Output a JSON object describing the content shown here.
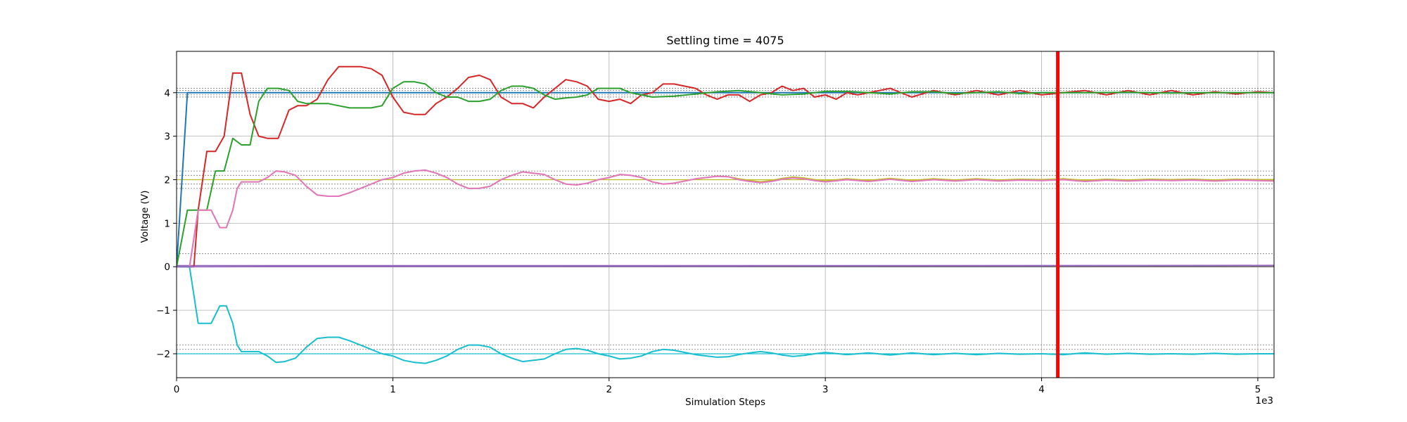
{
  "chart_data": {
    "type": "line",
    "title": "Settling time = 4075",
    "xlabel": "Simulation Steps",
    "ylabel": "Voltage (V)",
    "x_offset_label": "1e3",
    "xlim": [
      0,
      5075
    ],
    "ylim": [
      -2.55,
      4.95
    ],
    "xticks": [
      0,
      1000,
      2000,
      3000,
      4000,
      5000
    ],
    "xtick_labels": [
      "0",
      "1",
      "2",
      "3",
      "4",
      "5"
    ],
    "yticks": [
      -2,
      -1,
      0,
      1,
      2,
      3,
      4
    ],
    "ytick_labels": [
      "−2",
      "−1",
      "0",
      "1",
      "2",
      "3",
      "4"
    ],
    "grid": true,
    "settling_time": 4075,
    "settling_line_color": "#ff0000",
    "reference_lines": [
      {
        "y": 4.0,
        "color": "#1f77b4",
        "style": "solid"
      },
      {
        "y": 2.0,
        "color": "#bcbd22",
        "style": "solid"
      },
      {
        "y": 0.0,
        "color": "#555555",
        "style": "solid"
      },
      {
        "y": 0.03,
        "color": "#9467bd",
        "style": "solid"
      },
      {
        "y": -2.0,
        "color": "#17becf",
        "style": "solid"
      }
    ],
    "tolerance_bands": [
      3.9,
      3.95,
      4.05,
      4.1,
      1.8,
      1.9,
      2.1,
      2.2,
      0.3,
      -1.8,
      -1.9
    ],
    "series": [
      {
        "color": "#1f77b4",
        "x": [
          0,
          50,
          100,
          5075
        ],
        "y": [
          0,
          4,
          4,
          4
        ]
      },
      {
        "color": "#d62728",
        "x": [
          0,
          80,
          100,
          140,
          180,
          220,
          260,
          300,
          340,
          380,
          420,
          470,
          520,
          560,
          600,
          650,
          700,
          750,
          800,
          850,
          900,
          950,
          1000,
          1050,
          1100,
          1150,
          1200,
          1250,
          1300,
          1350,
          1400,
          1450,
          1500,
          1550,
          1600,
          1650,
          1700,
          1750,
          1800,
          1850,
          1900,
          1950,
          2000,
          2050,
          2100,
          2150,
          2200,
          2250,
          2300,
          2350,
          2400,
          2450,
          2500,
          2550,
          2600,
          2650,
          2700,
          2750,
          2800,
          2850,
          2900,
          2950,
          3000,
          3050,
          3100,
          3150,
          3200,
          3300,
          3400,
          3500,
          3600,
          3700,
          3800,
          3900,
          4000,
          4100,
          4200,
          4300,
          4400,
          4500,
          4600,
          4700,
          4800,
          4900,
          5000,
          5075
        ],
        "y": [
          0,
          0,
          1.3,
          2.65,
          2.65,
          3.0,
          4.45,
          4.45,
          3.5,
          3.0,
          2.95,
          2.95,
          3.6,
          3.7,
          3.7,
          3.85,
          4.3,
          4.6,
          4.6,
          4.6,
          4.55,
          4.4,
          3.9,
          3.55,
          3.5,
          3.5,
          3.75,
          3.9,
          4.1,
          4.35,
          4.4,
          4.3,
          3.9,
          3.75,
          3.75,
          3.65,
          3.9,
          4.1,
          4.3,
          4.25,
          4.15,
          3.85,
          3.8,
          3.85,
          3.75,
          3.95,
          4.0,
          4.2,
          4.2,
          4.15,
          4.1,
          3.95,
          3.85,
          3.95,
          3.95,
          3.8,
          3.95,
          4.0,
          4.15,
          4.05,
          4.1,
          3.9,
          3.95,
          3.85,
          4.0,
          3.95,
          4.0,
          4.1,
          3.9,
          4.05,
          3.95,
          4.05,
          3.95,
          4.05,
          3.95,
          4.0,
          4.05,
          3.95,
          4.05,
          3.95,
          4.05,
          3.95,
          4.02,
          3.97,
          4.02,
          4.0
        ]
      },
      {
        "color": "#2ca02c",
        "x": [
          0,
          50,
          100,
          140,
          180,
          220,
          260,
          300,
          340,
          380,
          420,
          470,
          520,
          560,
          600,
          650,
          700,
          750,
          800,
          850,
          900,
          950,
          1000,
          1050,
          1100,
          1150,
          1200,
          1250,
          1300,
          1350,
          1400,
          1450,
          1500,
          1550,
          1600,
          1650,
          1700,
          1750,
          1800,
          1850,
          1900,
          1950,
          2000,
          2050,
          2100,
          2150,
          2200,
          2300,
          2400,
          2500,
          2600,
          2700,
          2800,
          2900,
          3000,
          3100,
          3200,
          3300,
          3400,
          3500,
          3600,
          3700,
          3800,
          3900,
          4000,
          4200,
          4400,
          4600,
          4800,
          5000,
          5075
        ],
        "y": [
          0,
          1.3,
          1.3,
          1.3,
          2.2,
          2.2,
          2.95,
          2.8,
          2.8,
          3.8,
          4.1,
          4.1,
          4.05,
          3.8,
          3.75,
          3.75,
          3.75,
          3.7,
          3.65,
          3.65,
          3.65,
          3.7,
          4.1,
          4.25,
          4.25,
          4.2,
          4.0,
          3.9,
          3.9,
          3.8,
          3.8,
          3.85,
          4.05,
          4.15,
          4.15,
          4.1,
          3.95,
          3.85,
          3.88,
          3.9,
          3.95,
          4.1,
          4.1,
          4.1,
          4.0,
          3.95,
          3.9,
          3.92,
          3.97,
          4.02,
          4.05,
          4.0,
          3.95,
          3.97,
          4.03,
          4.03,
          4.0,
          3.97,
          4.02,
          4.02,
          3.98,
          4.0,
          4.02,
          3.98,
          4.0,
          4.0,
          4.01,
          3.99,
          4.0,
          4.0,
          4.0
        ]
      },
      {
        "color": "#bcbd22",
        "x": [
          0,
          60,
          100,
          160,
          200,
          230,
          260,
          280,
          300,
          340,
          380,
          420,
          460,
          500,
          550,
          600,
          650,
          700,
          750,
          800,
          850,
          900,
          950,
          1000,
          1050,
          1100,
          1150,
          1200,
          1250,
          1300,
          1350,
          1400,
          1450,
          1500,
          1550,
          1600,
          1650,
          1700,
          1750,
          1800,
          1850,
          1900,
          1950,
          2000,
          2050,
          2100,
          2150,
          2200,
          2250,
          2300,
          2350,
          2400,
          2450,
          2500,
          2550,
          2600,
          2650,
          2700,
          2750,
          2800,
          2850,
          2900,
          2950,
          3000,
          3100,
          3200,
          3300,
          3400,
          3500,
          3600,
          3700,
          3800,
          3900,
          4000,
          4100,
          4200,
          4300,
          4400,
          4500,
          4600,
          4700,
          4800,
          4900,
          5000,
          5075
        ],
        "y": [
          0,
          0,
          1.3,
          1.3,
          0.9,
          0.9,
          1.3,
          1.8,
          1.95,
          1.95,
          1.95,
          2.05,
          2.2,
          2.18,
          2.1,
          1.85,
          1.65,
          1.62,
          1.62,
          1.7,
          1.8,
          1.9,
          2.0,
          2.05,
          2.15,
          2.2,
          2.22,
          2.15,
          2.05,
          1.9,
          1.8,
          1.8,
          1.85,
          2.0,
          2.1,
          2.18,
          2.15,
          2.12,
          2.0,
          1.9,
          1.88,
          1.92,
          2.0,
          2.05,
          2.12,
          2.1,
          2.05,
          1.95,
          1.9,
          1.92,
          1.97,
          2.02,
          2.05,
          2.08,
          2.07,
          2.02,
          1.98,
          1.95,
          1.98,
          2.03,
          2.06,
          2.04,
          2.0,
          1.97,
          2.02,
          1.98,
          2.03,
          1.98,
          2.02,
          1.99,
          2.02,
          1.99,
          2.01,
          2.0,
          2.02,
          1.98,
          2.01,
          1.99,
          2.01,
          2.0,
          2.01,
          1.99,
          2.01,
          2.0,
          2.0
        ]
      },
      {
        "color": "#e377c2",
        "x": [
          0,
          60,
          100,
          160,
          200,
          230,
          260,
          280,
          300,
          340,
          380,
          420,
          460,
          500,
          550,
          600,
          650,
          700,
          750,
          800,
          850,
          900,
          950,
          1000,
          1050,
          1100,
          1150,
          1200,
          1250,
          1300,
          1350,
          1400,
          1450,
          1500,
          1550,
          1600,
          1650,
          1700,
          1750,
          1800,
          1850,
          1900,
          1950,
          2000,
          2050,
          2100,
          2150,
          2200,
          2250,
          2300,
          2350,
          2400,
          2450,
          2500,
          2550,
          2600,
          2650,
          2700,
          2750,
          2800,
          2850,
          2900,
          2950,
          3000,
          3100,
          3200,
          3300,
          3400,
          3500,
          3600,
          3700,
          3800,
          3900,
          4000,
          4100,
          4200,
          4300,
          4400,
          4500,
          4600,
          4700,
          4800,
          4900,
          5000,
          5075
        ],
        "y": [
          0,
          0,
          1.3,
          1.3,
          0.9,
          0.9,
          1.3,
          1.8,
          1.95,
          1.95,
          1.95,
          2.05,
          2.2,
          2.18,
          2.1,
          1.85,
          1.65,
          1.62,
          1.62,
          1.7,
          1.8,
          1.9,
          2.0,
          2.05,
          2.15,
          2.2,
          2.22,
          2.15,
          2.05,
          1.9,
          1.8,
          1.8,
          1.85,
          2.0,
          2.1,
          2.18,
          2.15,
          2.12,
          2.0,
          1.9,
          1.88,
          1.92,
          2.0,
          2.05,
          2.12,
          2.1,
          2.05,
          1.95,
          1.9,
          1.92,
          1.97,
          2.02,
          2.05,
          2.08,
          2.07,
          2.0,
          1.96,
          1.93,
          1.96,
          2.01,
          2.04,
          2.02,
          1.98,
          1.95,
          2.0,
          1.96,
          2.01,
          1.96,
          2.0,
          1.97,
          2.0,
          1.97,
          1.99,
          1.98,
          2.0,
          1.96,
          1.99,
          1.97,
          1.99,
          1.98,
          1.99,
          1.97,
          1.99,
          1.98,
          1.97
        ]
      },
      {
        "color": "#17becf",
        "x": [
          0,
          60,
          100,
          160,
          200,
          230,
          260,
          280,
          300,
          340,
          380,
          420,
          460,
          500,
          550,
          600,
          650,
          700,
          750,
          800,
          850,
          900,
          950,
          1000,
          1050,
          1100,
          1150,
          1200,
          1250,
          1300,
          1350,
          1400,
          1450,
          1500,
          1550,
          1600,
          1650,
          1700,
          1750,
          1800,
          1850,
          1900,
          1950,
          2000,
          2050,
          2100,
          2150,
          2200,
          2250,
          2300,
          2350,
          2400,
          2450,
          2500,
          2550,
          2600,
          2650,
          2700,
          2750,
          2800,
          2850,
          2900,
          2950,
          3000,
          3100,
          3200,
          3300,
          3400,
          3500,
          3600,
          3700,
          3800,
          3900,
          4000,
          4100,
          4200,
          4300,
          4400,
          4500,
          4600,
          4700,
          4800,
          4900,
          5000,
          5075
        ],
        "y": [
          0,
          0,
          -1.3,
          -1.3,
          -0.9,
          -0.9,
          -1.3,
          -1.8,
          -1.95,
          -1.95,
          -1.95,
          -2.05,
          -2.2,
          -2.18,
          -2.1,
          -1.85,
          -1.65,
          -1.62,
          -1.62,
          -1.7,
          -1.8,
          -1.9,
          -2.0,
          -2.05,
          -2.15,
          -2.2,
          -2.22,
          -2.15,
          -2.05,
          -1.9,
          -1.8,
          -1.8,
          -1.85,
          -2.0,
          -2.1,
          -2.18,
          -2.15,
          -2.12,
          -2.0,
          -1.9,
          -1.88,
          -1.92,
          -2.0,
          -2.05,
          -2.12,
          -2.1,
          -2.05,
          -1.95,
          -1.9,
          -1.92,
          -1.97,
          -2.02,
          -2.05,
          -2.08,
          -2.07,
          -2.02,
          -1.98,
          -1.95,
          -1.98,
          -2.03,
          -2.06,
          -2.04,
          -2.0,
          -1.97,
          -2.02,
          -1.98,
          -2.03,
          -1.98,
          -2.02,
          -1.99,
          -2.02,
          -1.99,
          -2.01,
          -2.0,
          -2.02,
          -1.98,
          -2.01,
          -1.99,
          -2.01,
          -2.0,
          -2.01,
          -1.99,
          -2.01,
          -2.0,
          -2.0
        ]
      },
      {
        "color": "#9467bd",
        "x": [
          0,
          5075
        ],
        "y": [
          0,
          0.03
        ]
      }
    ]
  }
}
